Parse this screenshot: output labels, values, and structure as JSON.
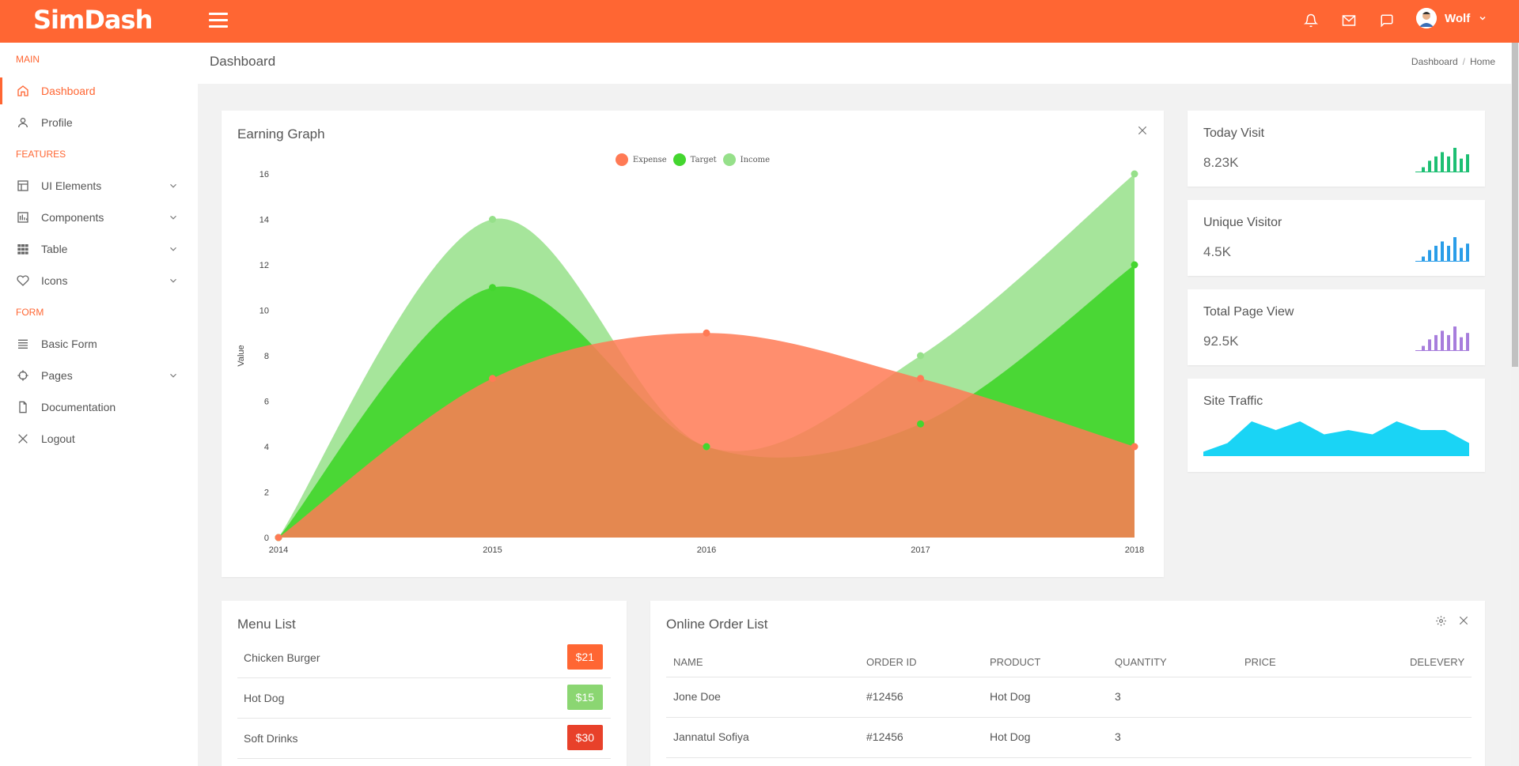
{
  "topbar": {
    "logo": "SimDash",
    "user_name": "Wolf",
    "icons": [
      "menu-icon",
      "bell-icon",
      "mail-icon",
      "chat-icon",
      "avatar",
      "chevron-down-icon"
    ],
    "accent": "#ff6633"
  },
  "sidebar": {
    "section_main": "MAIN",
    "section_features": "FEATURES",
    "section_form": "FORM",
    "items": [
      {
        "label": "Dashboard",
        "icon": "home-icon",
        "active": true
      },
      {
        "label": "Profile",
        "icon": "user-icon"
      },
      {
        "label": "UI Elements",
        "icon": "layout-icon",
        "has_submenu": true
      },
      {
        "label": "Components",
        "icon": "components-icon",
        "has_submenu": true
      },
      {
        "label": "Table",
        "icon": "table-icon",
        "has_submenu": true
      },
      {
        "label": "Icons",
        "icon": "heart-icon",
        "has_submenu": true
      },
      {
        "label": "Basic Form",
        "icon": "form-icon"
      },
      {
        "label": "Pages",
        "icon": "target-icon",
        "has_submenu": true
      },
      {
        "label": "Documentation",
        "icon": "document-icon"
      },
      {
        "label": "Logout",
        "icon": "close-icon"
      }
    ]
  },
  "page": {
    "title": "Dashboard",
    "breadcrumb": [
      "Dashboard",
      "Home"
    ]
  },
  "earning": {
    "title": "Earning Graph"
  },
  "chart_data": {
    "type": "area",
    "title": "Earning Graph",
    "ylabel": "Value",
    "xlabel": "",
    "ylim": [
      0,
      16
    ],
    "y_ticks": [
      "0",
      "2",
      "4",
      "6",
      "8",
      "10",
      "12",
      "14",
      "16"
    ],
    "categories": [
      "2014",
      "2015",
      "2016",
      "2017",
      "2018"
    ],
    "legend_position": "top-center",
    "series": [
      {
        "name": "Income",
        "color": "#96e08a",
        "values": [
          0,
          14,
          4,
          8,
          16
        ]
      },
      {
        "name": "Target",
        "color": "#44d62f",
        "values": [
          0,
          11,
          4,
          5,
          12
        ]
      },
      {
        "name": "Expense",
        "color": "#ff7a55",
        "values": [
          0,
          7,
          9,
          7,
          4
        ]
      }
    ],
    "legend_order": [
      "Expense",
      "Target",
      "Income"
    ]
  },
  "stats": [
    {
      "title": "Today Visit",
      "value": "8.23K",
      "color": "#1dbf73",
      "bars": [
        2,
        5,
        7,
        9,
        7,
        11,
        6,
        8
      ]
    },
    {
      "title": "Unique Visitor",
      "value": "4.5K",
      "color": "#2a9de8",
      "bars": [
        2,
        5,
        7,
        9,
        7,
        11,
        6,
        8
      ]
    },
    {
      "title": "Total Page View",
      "value": "92.5K",
      "color": "#a77ddc",
      "bars": [
        2,
        5,
        7,
        9,
        7,
        11,
        6,
        8
      ]
    }
  ],
  "traffic": {
    "title": "Site Traffic",
    "color": "#1ad4f5",
    "values": [
      1,
      3,
      8,
      6,
      8,
      5,
      6,
      5,
      8,
      6,
      6,
      3
    ]
  },
  "menu": {
    "title": "Menu List",
    "items": [
      {
        "name": "Chicken Burger",
        "price": "$21",
        "color": "#ff6633"
      },
      {
        "name": "Hot Dog",
        "price": "$15",
        "color": "#8bd672"
      },
      {
        "name": "Soft Drinks",
        "price": "$30",
        "color": "#e8412a"
      }
    ]
  },
  "orders": {
    "title": "Online Order List",
    "columns": [
      "NAME",
      "ORDER ID",
      "PRODUCT",
      "QUANTITY",
      "PRICE",
      "DELEVERY"
    ],
    "rows": [
      {
        "name": "Jone Doe",
        "order_id": "#12456",
        "product": "Hot Dog",
        "quantity": "3"
      },
      {
        "name": "Jannatul Sofiya",
        "order_id": "#12456",
        "product": "Hot Dog",
        "quantity": "3"
      }
    ]
  }
}
